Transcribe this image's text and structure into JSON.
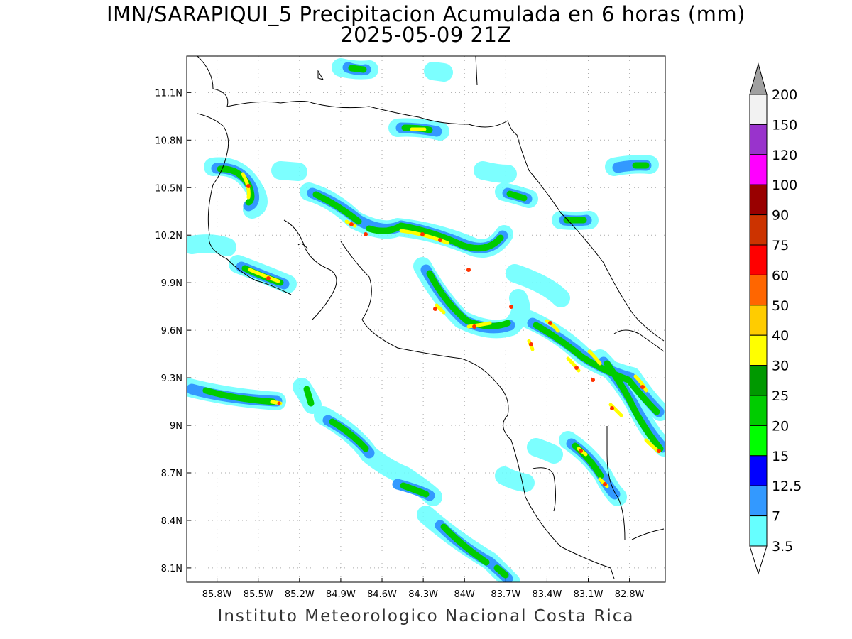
{
  "header": {
    "title": "IMN/SARAPIQUI_5 Precipitacion Acumulada en 6 horas (mm)",
    "subtitle": "2025-05-09 21Z"
  },
  "footer": {
    "credit": "Instituto Meteorologico Nacional Costa Rica"
  },
  "map": {
    "lon_range": [
      -86.02,
      -82.54
    ],
    "lat_range": [
      8.01,
      11.33
    ],
    "lon_ticks": [
      "85.8W",
      "85.5W",
      "85.2W",
      "84.9W",
      "84.6W",
      "84.3W",
      "84W",
      "83.7W",
      "83.4W",
      "83.1W",
      "82.8W"
    ],
    "lat_ticks": [
      "11.1N",
      "10.8N",
      "10.5N",
      "10.2N",
      "9.9N",
      "9.6N",
      "9.3N",
      "9N",
      "8.7N",
      "8.4N",
      "8.1N"
    ],
    "grid": true
  },
  "colorbar": {
    "levels": [
      "200",
      "150",
      "120",
      "100",
      "90",
      "75",
      "60",
      "50",
      "40",
      "30",
      "25",
      "20",
      "15",
      "12.5",
      "7",
      "3.5"
    ],
    "colors": [
      "#f2f2f2",
      "#9933cc",
      "#ff00ff",
      "#990000",
      "#cc3300",
      "#ff0000",
      "#ff6600",
      "#ffcc00",
      "#ffff00",
      "#009900",
      "#00cc00",
      "#00ff00",
      "#0000ff",
      "#3399ff",
      "#66ffff"
    ],
    "over_color": "#a0a0a0",
    "under_color": "#ffffff"
  }
}
